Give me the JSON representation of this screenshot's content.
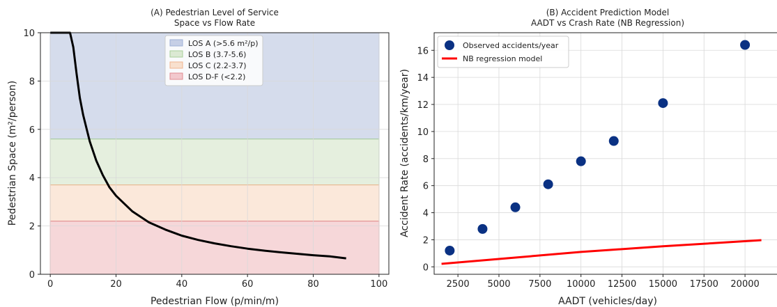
{
  "chart_data": [
    {
      "type": "area",
      "title": "(A) Pedestrian Level of Service",
      "subtitle": "Space vs Flow Rate",
      "xlabel": "Pedestrian Flow (p/min/m)",
      "ylabel": "Pedestrian Space (m²/person)",
      "xlim": [
        -3,
        103
      ],
      "ylim": [
        0,
        10
      ],
      "xticks": [
        "0",
        "20",
        "40",
        "60",
        "80",
        "100"
      ],
      "yticks": [
        "0",
        "2",
        "4",
        "6",
        "8",
        "10"
      ],
      "grid": true,
      "legend_position": "top-center",
      "bands": [
        {
          "name": "LOS A (>5.6 m²/p)",
          "y0": 5.6,
          "y1": 10,
          "x0": 0,
          "x1": 100,
          "color": "#b9c4e0",
          "edge": "#9fb0d6"
        },
        {
          "name": "LOS B (3.7-5.6)",
          "y0": 3.7,
          "y1": 5.6,
          "x0": 0,
          "x1": 100,
          "color": "#d3e5c8",
          "edge": "#a8cf9a"
        },
        {
          "name": "LOS C (2.2-3.7)",
          "y0": 2.2,
          "y1": 3.7,
          "x0": 0,
          "x1": 100,
          "color": "#f8d9c2",
          "edge": "#efb48f"
        },
        {
          "name": "LOS D-F (<2.2)",
          "y0": 0,
          "y1": 2.2,
          "x0": 0,
          "x1": 100,
          "color": "#f0bcc0",
          "edge": "#e08c92"
        }
      ],
      "curve": {
        "x": [
          0,
          1,
          2,
          3,
          4,
          5,
          6,
          7,
          8,
          9,
          10,
          12,
          14,
          16,
          18,
          20,
          25,
          30,
          35,
          40,
          45,
          50,
          55,
          60,
          65,
          70,
          75,
          80,
          85,
          90
        ],
        "y": [
          10,
          10,
          10,
          10,
          10,
          10,
          10,
          9.4,
          8.3,
          7.3,
          6.6,
          5.5,
          4.7,
          4.1,
          3.6,
          3.25,
          2.6,
          2.15,
          1.85,
          1.6,
          1.42,
          1.28,
          1.16,
          1.06,
          0.98,
          0.91,
          0.85,
          0.79,
          0.74,
          0.66
        ],
        "color": "#000000"
      }
    },
    {
      "type": "scatter",
      "title": "(B) Accident Prediction Model",
      "subtitle": "AADT vs Crash Rate (NB Regression)",
      "xlabel": "AADT (vehicles/day)",
      "ylabel": "Accident Rate (accidents/km/year)",
      "xlim": [
        1050,
        21950
      ],
      "ylim": [
        -0.55,
        17.3
      ],
      "xticks": [
        "2500",
        "5000",
        "7500",
        "10000",
        "12500",
        "15000",
        "17500",
        "20000"
      ],
      "yticks": [
        "0",
        "2",
        "4",
        "6",
        "8",
        "10",
        "12",
        "14",
        "16"
      ],
      "grid": true,
      "legend_position": "top-left",
      "series": [
        {
          "name": "Observed accidents/year",
          "x": [
            2000,
            4000,
            6000,
            8000,
            10000,
            12000,
            15000,
            20000
          ],
          "y": [
            1.2,
            2.8,
            4.4,
            6.1,
            7.8,
            9.3,
            12.1,
            16.4
          ],
          "color": "#0a3183"
        },
        {
          "name": "NB regression model",
          "x": [
            1500,
            5000,
            10000,
            15000,
            21000
          ],
          "y": [
            0.22,
            0.58,
            1.1,
            1.52,
            1.97
          ],
          "color": "#ff0000"
        }
      ]
    }
  ]
}
